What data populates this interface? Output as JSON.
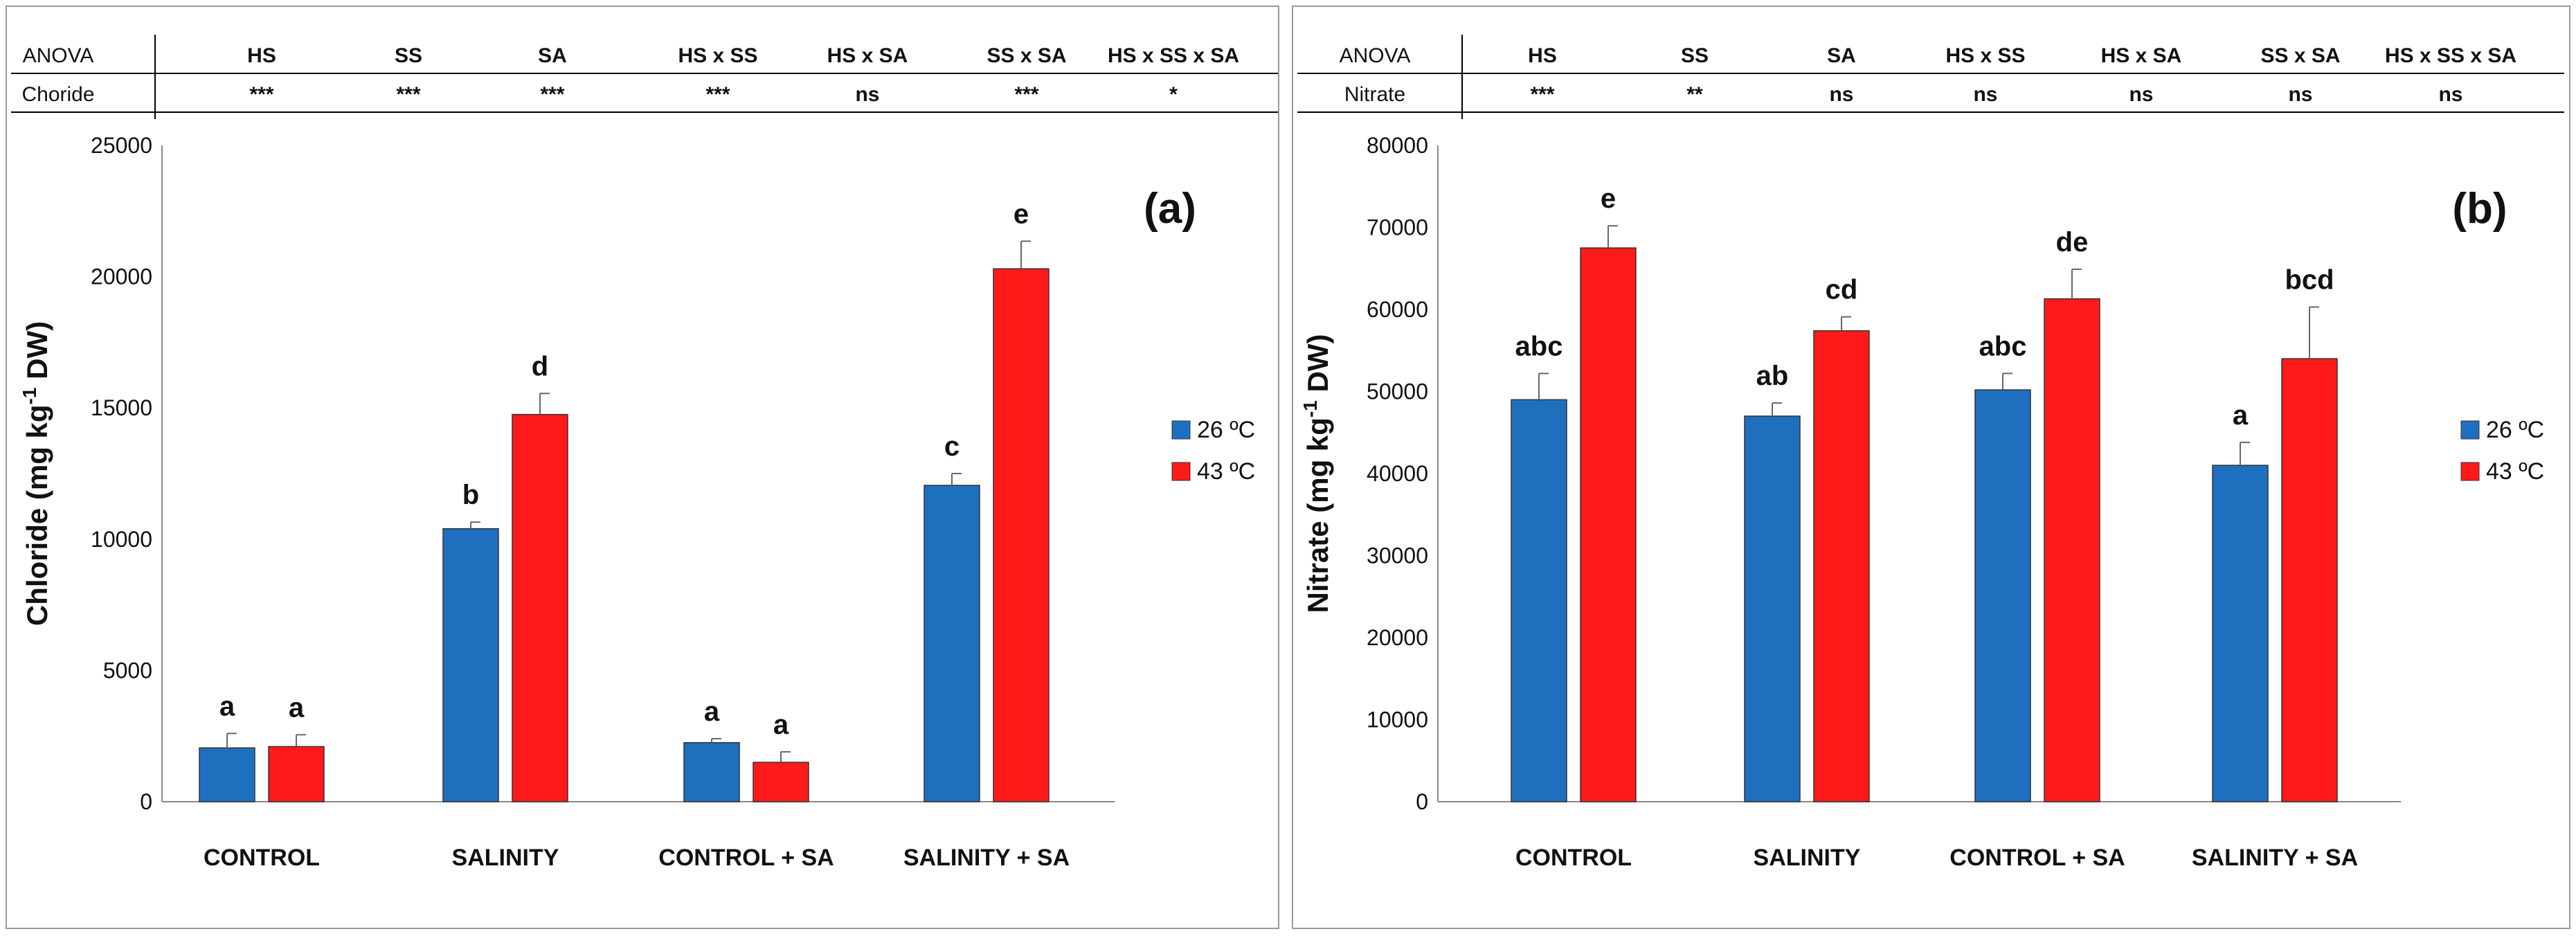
{
  "chart_data": [
    {
      "type": "bar",
      "panel_label": "(a)",
      "ylabel_main": "Chloride (mg kg",
      "ylabel_sup": "-1",
      "ylabel_tail": " DW)",
      "xlabel": "",
      "ylim": [
        0,
        25000
      ],
      "yticks": [
        "0",
        "5000",
        "10000",
        "15000",
        "20000",
        "25000"
      ],
      "categories": [
        "CONTROL",
        "SALINITY",
        "CONTROL + SA",
        "SALINITY + SA"
      ],
      "series": [
        {
          "name": "26 ºC",
          "color": "#1f6fbf",
          "values": [
            2050,
            10400,
            2250,
            12050
          ],
          "errors": [
            550,
            250,
            150,
            450
          ],
          "letters": [
            "a",
            "b",
            "a",
            "c"
          ]
        },
        {
          "name": "43 ºC",
          "color": "#ff1a1a",
          "values": [
            2100,
            14750,
            1500,
            20300
          ],
          "errors": [
            450,
            800,
            400,
            1050
          ],
          "letters": [
            "a",
            "d",
            "a",
            "e"
          ]
        }
      ],
      "anova": {
        "headers": [
          "ANOVA",
          "HS",
          "SS",
          "SA",
          "HS x SS",
          "HS x SA",
          "SS x SA",
          "HS x SS x SA"
        ],
        "row_label": "Choride",
        "values": [
          "***",
          "***",
          "***",
          "***",
          "ns",
          "***",
          "*"
        ]
      }
    },
    {
      "type": "bar",
      "panel_label": "(b)",
      "ylabel_main": "Nitrate (mg kg",
      "ylabel_sup": "-1",
      "ylabel_tail": " DW)",
      "xlabel": "",
      "ylim": [
        0,
        80000
      ],
      "yticks": [
        "0",
        "10000",
        "20000",
        "30000",
        "40000",
        "50000",
        "60000",
        "70000",
        "80000"
      ],
      "categories": [
        "CONTROL",
        "SALINITY",
        "CONTROL + SA",
        "SALINITY + SA"
      ],
      "series": [
        {
          "name": "26 ºC",
          "color": "#1f6fbf",
          "values": [
            49000,
            47000,
            50200,
            41000
          ],
          "errors": [
            3200,
            1600,
            2000,
            2800
          ],
          "letters": [
            "abc",
            "ab",
            "abc",
            "a"
          ]
        },
        {
          "name": "43 ºC",
          "color": "#ff1a1a",
          "values": [
            67500,
            57400,
            61300,
            54000
          ],
          "errors": [
            2700,
            1700,
            3600,
            6300
          ],
          "letters": [
            "e",
            "cd",
            "de",
            "bcd"
          ]
        }
      ],
      "anova": {
        "headers": [
          "ANOVA",
          "HS",
          "SS",
          "SA",
          "HS x SS",
          "HS x SA",
          "SS x SA",
          "HS x SS x SA"
        ],
        "row_label": "Nitrate",
        "values": [
          "***",
          "**",
          "ns",
          "ns",
          "ns",
          "ns",
          "ns"
        ]
      }
    }
  ]
}
